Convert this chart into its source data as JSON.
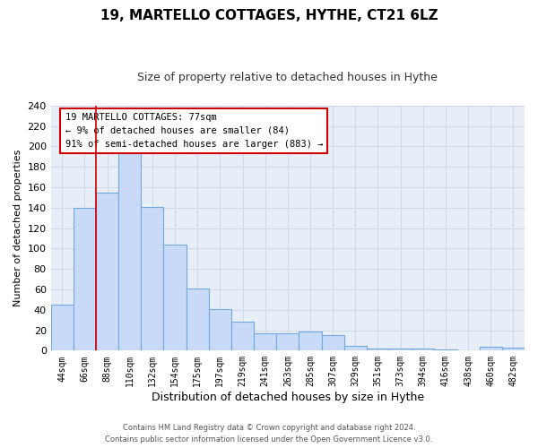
{
  "title": "19, MARTELLO COTTAGES, HYTHE, CT21 6LZ",
  "subtitle": "Size of property relative to detached houses in Hythe",
  "xlabel": "Distribution of detached houses by size in Hythe",
  "ylabel": "Number of detached properties",
  "bar_labels": [
    "44sqm",
    "66sqm",
    "88sqm",
    "110sqm",
    "132sqm",
    "154sqm",
    "175sqm",
    "197sqm",
    "219sqm",
    "241sqm",
    "263sqm",
    "285sqm",
    "307sqm",
    "329sqm",
    "351sqm",
    "373sqm",
    "394sqm",
    "416sqm",
    "438sqm",
    "460sqm",
    "482sqm"
  ],
  "bar_values": [
    45,
    140,
    155,
    200,
    141,
    104,
    61,
    41,
    28,
    17,
    17,
    19,
    15,
    5,
    2,
    2,
    2,
    1,
    0,
    4,
    3
  ],
  "bar_color": "#c9daf8",
  "bar_edge_color": "#6fa8dc",
  "highlight_line_color": "#cc0000",
  "annotation_text": "19 MARTELLO COTTAGES: 77sqm\n← 9% of detached houses are smaller (84)\n91% of semi-detached houses are larger (883) →",
  "annotation_box_edge": "#cc0000",
  "ylim": [
    0,
    240
  ],
  "yticks": [
    0,
    20,
    40,
    60,
    80,
    100,
    120,
    140,
    160,
    180,
    200,
    220,
    240
  ],
  "footer_line1": "Contains HM Land Registry data © Crown copyright and database right 2024.",
  "footer_line2": "Contains public sector information licensed under the Open Government Licence v3.0.",
  "bg_color": "#ffffff",
  "grid_color": "#d0d8e8"
}
